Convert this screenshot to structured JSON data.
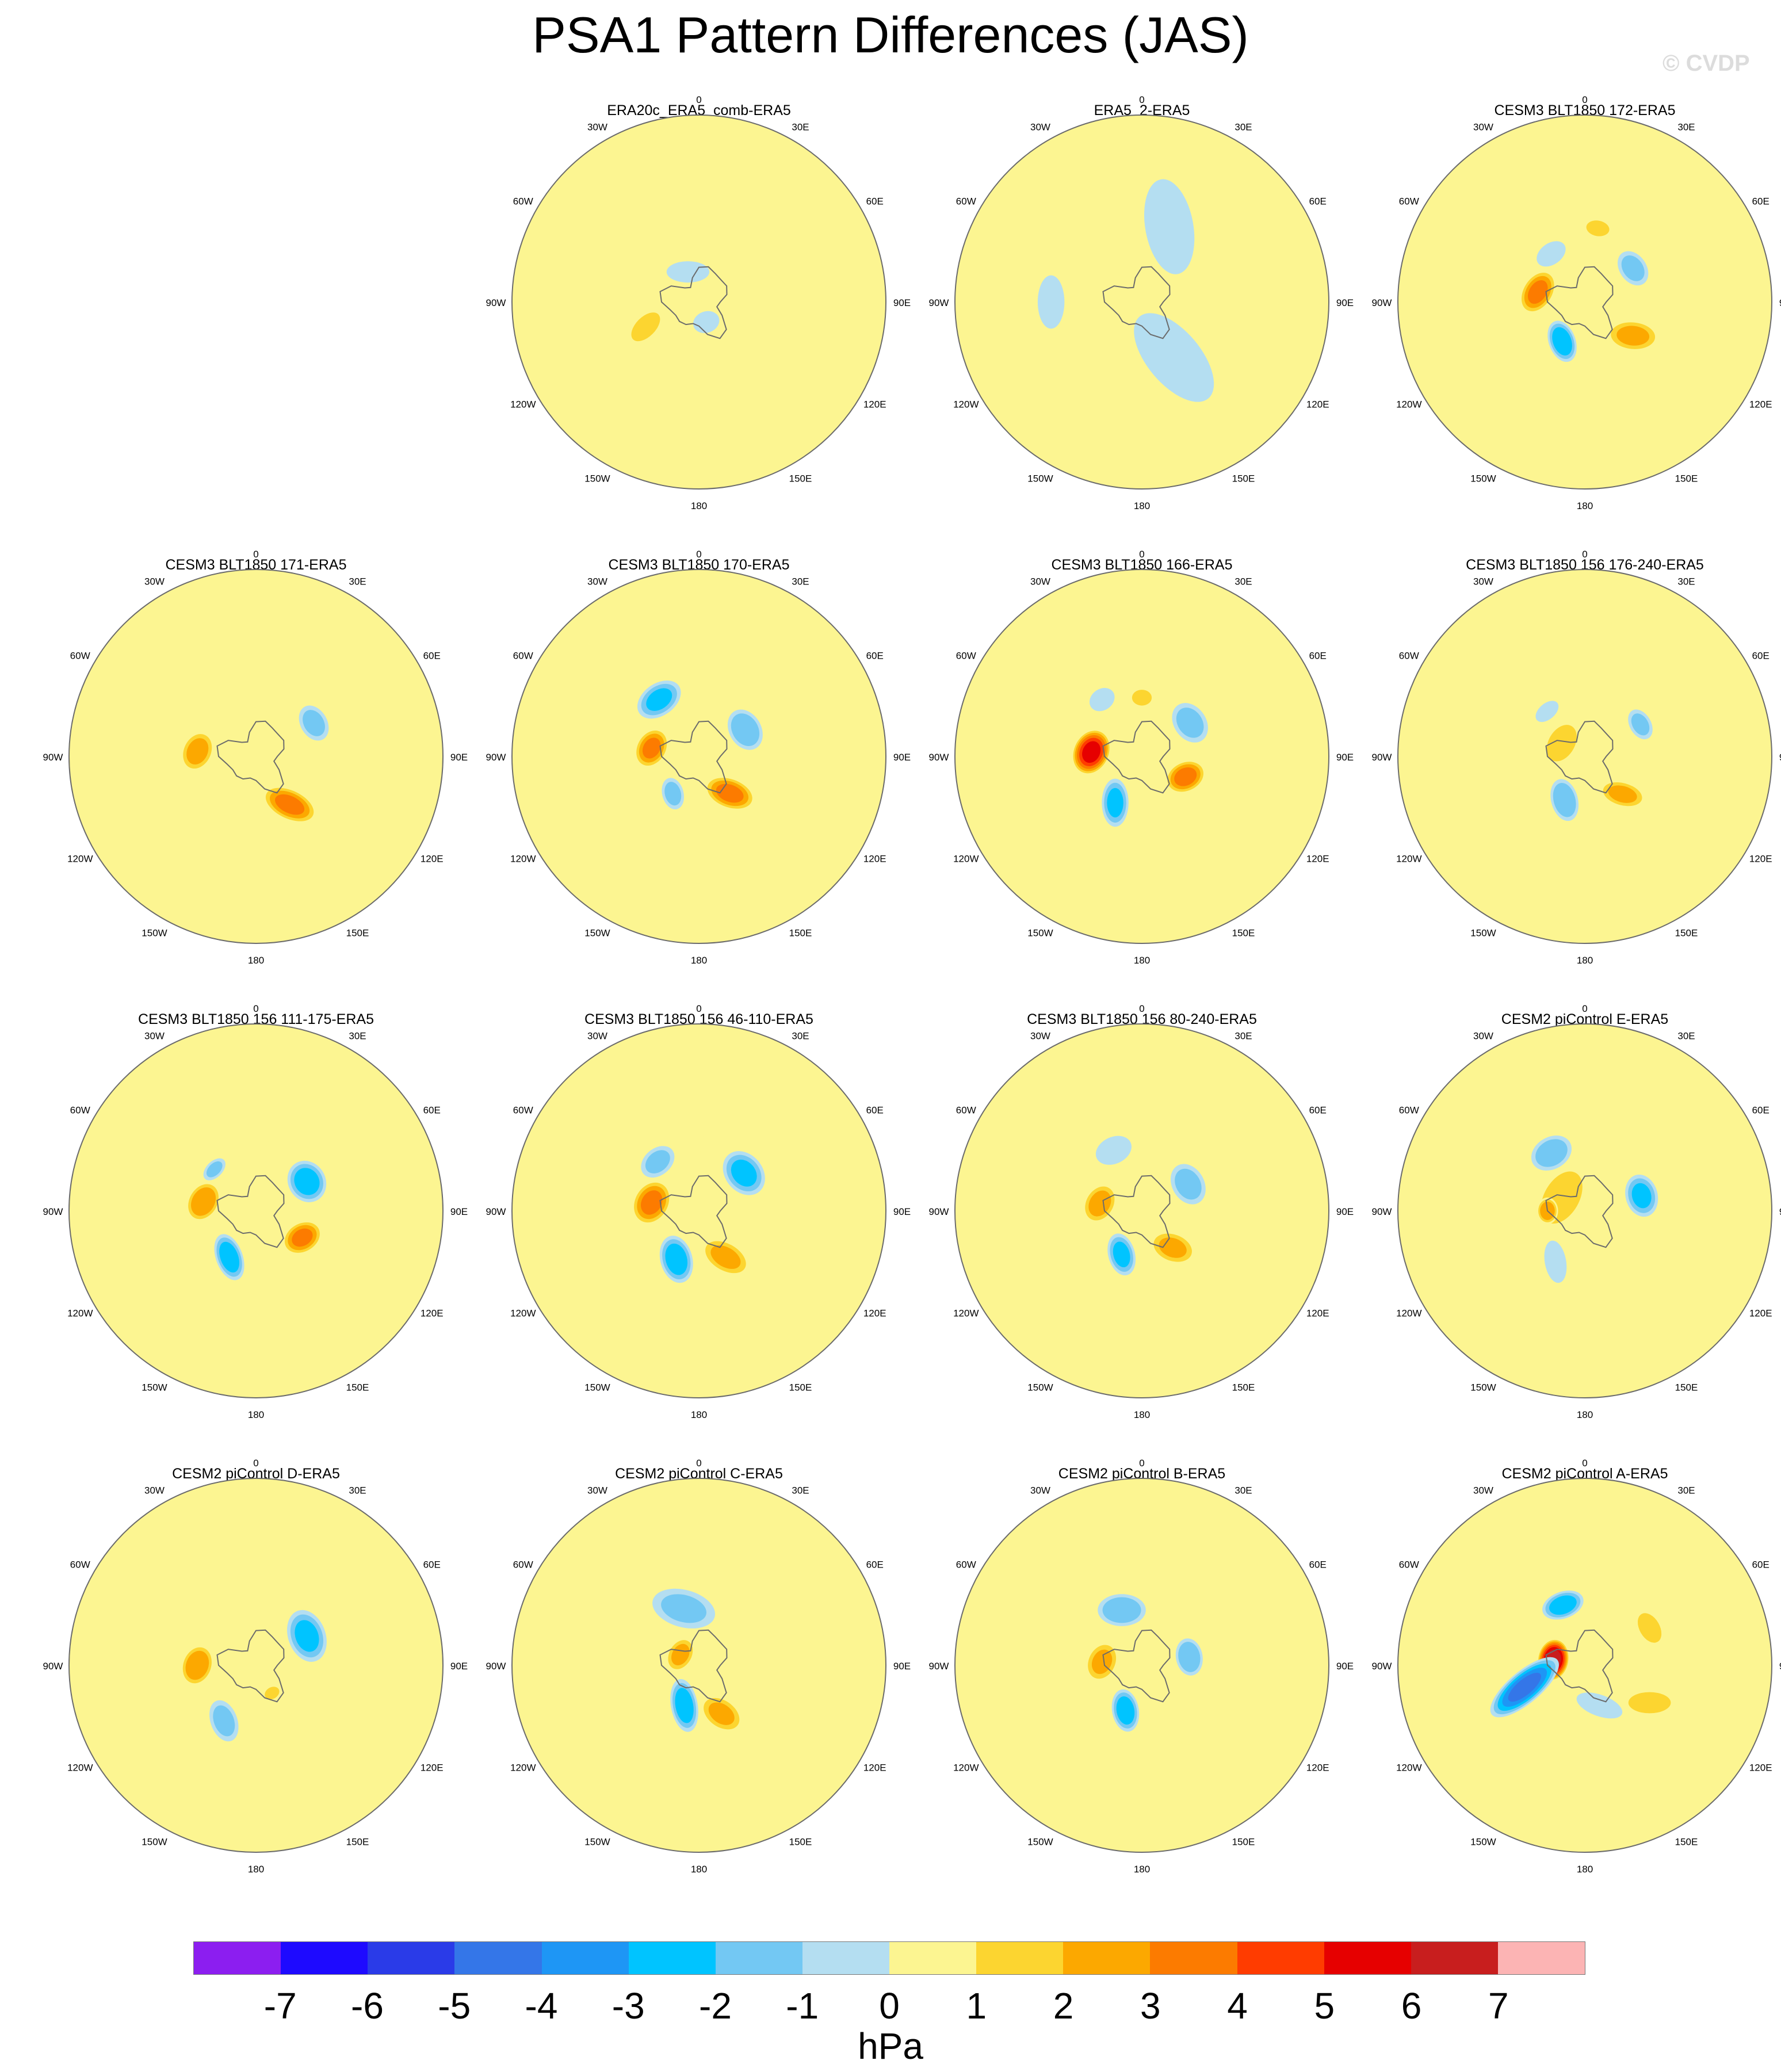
{
  "title": "PSA1 Pattern Differences (JAS)",
  "watermark": "© CVDP",
  "chart_data": {
    "type": "heatmap",
    "projection": "south-polar-stereographic",
    "variable": "sea level pressure pattern difference",
    "units": "hPa",
    "colorbar": {
      "levels": [
        -7,
        -6,
        -5,
        -4,
        -3,
        -2,
        -1,
        0,
        1,
        2,
        3,
        4,
        5,
        6,
        7
      ],
      "tick_labels": [
        "-7",
        "-6",
        "-5",
        "-4",
        "-3",
        "-2",
        "-1",
        "0",
        "1",
        "2",
        "3",
        "4",
        "5",
        "6",
        "7"
      ],
      "colors": [
        "#8c1ef0",
        "#1e0aff",
        "#2a3be8",
        "#3476e8",
        "#1e96f5",
        "#00c4ff",
        "#73c8f3",
        "#b4def1",
        "#fcf591",
        "#fcd530",
        "#fca800",
        "#fc7b00",
        "#ff3c00",
        "#e60000",
        "#c81e1e",
        "#fcb4b4"
      ]
    },
    "longitude_labels": [
      "0",
      "30E",
      "60E",
      "90E",
      "120E",
      "150E",
      "180",
      "150W",
      "120W",
      "90W",
      "60W",
      "30W"
    ],
    "panels": [
      {
        "title": "ERA20c_ERA5_comb-ERA5",
        "anomalies": [
          {
            "lon": -115,
            "colat": 22,
            "a": 9,
            "b": 5,
            "rot": 70,
            "value": 1.6
          },
          {
            "lon": -20,
            "colat": 12,
            "a": 8,
            "b": 4,
            "rot": 20,
            "value": -0.6
          },
          {
            "lon": 160,
            "colat": 8,
            "a": 5,
            "b": 4,
            "rot": 0,
            "value": -0.6
          },
          {
            "lon": 80,
            "colat": 4,
            "a": 4,
            "b": 3,
            "rot": 0,
            "value": 1.3
          }
        ]
      },
      {
        "title": "ERA5_2-ERA5",
        "anomalies": [
          {
            "lon": 20,
            "colat": 30,
            "a": 18,
            "b": 9,
            "rot": 60,
            "value": -0.6
          },
          {
            "lon": 150,
            "colat": 24,
            "a": 20,
            "b": 10,
            "rot": 80,
            "value": -0.6
          },
          {
            "lon": -90,
            "colat": 34,
            "a": 10,
            "b": 5,
            "rot": 0,
            "value": -0.6
          }
        ]
      },
      {
        "title": "CESM3 BLT1850 172-ERA5",
        "anomalies": [
          {
            "lon": -78,
            "colat": 18,
            "a": 9,
            "b": 6,
            "rot": 20,
            "value": 3.6
          },
          {
            "lon": -150,
            "colat": 17,
            "a": 8,
            "b": 5,
            "rot": 40,
            "value": -3.2
          },
          {
            "lon": 125,
            "colat": 22,
            "a": 10,
            "b": 6,
            "rot": 60,
            "value": 2.6
          },
          {
            "lon": 55,
            "colat": 22,
            "a": 7,
            "b": 5,
            "rot": 0,
            "value": -1.7
          },
          {
            "lon": 10,
            "colat": 28,
            "a": 6,
            "b": 4,
            "rot": 0,
            "value": 1.5
          },
          {
            "lon": -35,
            "colat": 22,
            "a": 6,
            "b": 4,
            "rot": 0,
            "value": -1.2
          }
        ]
      },
      {
        "title": "CESM3 BLT1850 171-ERA5",
        "anomalies": [
          {
            "lon": -85,
            "colat": 22,
            "a": 8,
            "b": 6,
            "rot": 20,
            "value": 2.8
          },
          {
            "lon": 145,
            "colat": 22,
            "a": 11,
            "b": 6,
            "rot": 60,
            "value": 3.6
          },
          {
            "lon": 60,
            "colat": 25,
            "a": 7,
            "b": 5,
            "rot": 0,
            "value": -1.7
          },
          {
            "lon": -20,
            "colat": 15,
            "a": 10,
            "b": 4,
            "rot": 10,
            "value": 1.0
          }
        ]
      },
      {
        "title": "CESM3 BLT1850 170-ERA5",
        "anomalies": [
          {
            "lon": -80,
            "colat": 18,
            "a": 8,
            "b": 6,
            "rot": 20,
            "value": 3.5
          },
          {
            "lon": 140,
            "colat": 18,
            "a": 10,
            "b": 6,
            "rot": 60,
            "value": 3.6
          },
          {
            "lon": -35,
            "colat": 26,
            "a": 9,
            "b": 6,
            "rot": 0,
            "value": -2.5
          },
          {
            "lon": 60,
            "colat": 20,
            "a": 8,
            "b": 6,
            "rot": 0,
            "value": -2.3
          },
          {
            "lon": -145,
            "colat": 17,
            "a": 6,
            "b": 4,
            "rot": 40,
            "value": -1.7
          }
        ]
      },
      {
        "title": "CESM3 BLT1850 166-ERA5",
        "anomalies": [
          {
            "lon": -85,
            "colat": 19,
            "a": 9,
            "b": 7,
            "rot": 20,
            "value": 5.8
          },
          {
            "lon": 115,
            "colat": 18,
            "a": 8,
            "b": 6,
            "rot": 40,
            "value": 3.7
          },
          {
            "lon": -150,
            "colat": 20,
            "a": 9,
            "b": 5,
            "rot": 60,
            "value": -2.6
          },
          {
            "lon": 55,
            "colat": 22,
            "a": 8,
            "b": 6,
            "rot": 0,
            "value": -1.8
          },
          {
            "lon": 0,
            "colat": 22,
            "a": 5,
            "b": 4,
            "rot": 0,
            "value": 1.6
          },
          {
            "lon": -35,
            "colat": 26,
            "a": 5,
            "b": 4,
            "rot": 0,
            "value": -1.4
          }
        ]
      },
      {
        "title": "CESM3 BLT1850 156 176-240-ERA5",
        "anomalies": [
          {
            "lon": -60,
            "colat": 10,
            "a": 9,
            "b": 6,
            "rot": 0,
            "value": 2.4
          },
          {
            "lon": 135,
            "colat": 20,
            "a": 9,
            "b": 5,
            "rot": 60,
            "value": 2.6
          },
          {
            "lon": -155,
            "colat": 18,
            "a": 8,
            "b": 5,
            "rot": 50,
            "value": -2.4
          },
          {
            "lon": 60,
            "colat": 24,
            "a": 6,
            "b": 4,
            "rot": 0,
            "value": -1.6
          },
          {
            "lon": -40,
            "colat": 22,
            "a": 5,
            "b": 3,
            "rot": 0,
            "value": -1.2
          }
        ]
      },
      {
        "title": "CESM3 BLT1850 156 111-175-ERA5",
        "anomalies": [
          {
            "lon": -80,
            "colat": 20,
            "a": 8,
            "b": 6,
            "rot": 20,
            "value": 3.4
          },
          {
            "lon": 120,
            "colat": 20,
            "a": 8,
            "b": 6,
            "rot": 30,
            "value": 3.5
          },
          {
            "lon": -150,
            "colat": 20,
            "a": 9,
            "b": 5,
            "rot": 40,
            "value": -3.0
          },
          {
            "lon": 60,
            "colat": 22,
            "a": 8,
            "b": 7,
            "rot": 0,
            "value": -2.9
          },
          {
            "lon": -10,
            "colat": 25,
            "a": 9,
            "b": 4,
            "rot": 0,
            "value": 1.0
          },
          {
            "lon": -45,
            "colat": 22,
            "a": 5,
            "b": 3,
            "rot": 0,
            "value": -1.5
          }
        ]
      },
      {
        "title": "CESM3 BLT1850 156 46-110-ERA5",
        "anomalies": [
          {
            "lon": -80,
            "colat": 18,
            "a": 9,
            "b": 7,
            "rot": 20,
            "value": 3.6
          },
          {
            "lon": 150,
            "colat": 20,
            "a": 10,
            "b": 6,
            "rot": 60,
            "value": 2.6
          },
          {
            "lon": -155,
            "colat": 20,
            "a": 9,
            "b": 6,
            "rot": 50,
            "value": -3.0
          },
          {
            "lon": 50,
            "colat": 22,
            "a": 9,
            "b": 7,
            "rot": 0,
            "value": -2.6
          },
          {
            "lon": -40,
            "colat": 24,
            "a": 7,
            "b": 5,
            "rot": 0,
            "value": -1.6
          },
          {
            "lon": 5,
            "colat": 25,
            "a": 4,
            "b": 3,
            "rot": 0,
            "value": 1.3
          }
        ]
      },
      {
        "title": "CESM3 BLT1850 156 80-240-ERA5",
        "anomalies": [
          {
            "lon": -80,
            "colat": 16,
            "a": 8,
            "b": 6,
            "rot": 20,
            "value": 2.8
          },
          {
            "lon": 140,
            "colat": 18,
            "a": 9,
            "b": 6,
            "rot": 60,
            "value": 2.5
          },
          {
            "lon": -155,
            "colat": 18,
            "a": 8,
            "b": 5,
            "rot": 50,
            "value": -2.6
          },
          {
            "lon": 60,
            "colat": 20,
            "a": 8,
            "b": 6,
            "rot": 0,
            "value": -1.8
          },
          {
            "lon": -25,
            "colat": 25,
            "a": 7,
            "b": 5,
            "rot": 0,
            "value": -1.2
          }
        ]
      },
      {
        "title": "CESM2 piControl E-ERA5",
        "anomalies": [
          {
            "lon": -60,
            "colat": 10,
            "a": 13,
            "b": 8,
            "rot": 0,
            "value": 2.4
          },
          {
            "lon": -90,
            "colat": 14,
            "a": 5,
            "b": 4,
            "rot": 0,
            "value": 3.2
          },
          {
            "lon": 75,
            "colat": 22,
            "a": 8,
            "b": 6,
            "rot": 0,
            "value": -2.5
          },
          {
            "lon": -30,
            "colat": 25,
            "a": 8,
            "b": 6,
            "rot": 0,
            "value": -2.1
          },
          {
            "lon": -150,
            "colat": 22,
            "a": 8,
            "b": 4,
            "rot": 50,
            "value": -1.3
          },
          {
            "lon": 160,
            "colat": 15,
            "a": 6,
            "b": 4,
            "rot": 0,
            "value": 1.2
          }
        ]
      },
      {
        "title": "CESM2 piControl D-ERA5",
        "anomalies": [
          {
            "lon": -90,
            "colat": 22,
            "a": 8,
            "b": 6,
            "rot": 20,
            "value": 3.3
          },
          {
            "lon": 60,
            "colat": 22,
            "a": 10,
            "b": 7,
            "rot": 10,
            "value": -2.6
          },
          {
            "lon": -150,
            "colat": 24,
            "a": 8,
            "b": 5,
            "rot": 40,
            "value": -1.7
          },
          {
            "lon": 150,
            "colat": 12,
            "a": 4,
            "b": 3,
            "rot": 0,
            "value": 1.5
          }
        ]
      },
      {
        "title": "CESM2 piControl C-ERA5",
        "anomalies": [
          {
            "lon": -60,
            "colat": 8,
            "a": 7,
            "b": 5,
            "rot": 0,
            "value": 2.6
          },
          {
            "lon": 155,
            "colat": 20,
            "a": 9,
            "b": 6,
            "rot": 60,
            "value": 2.5
          },
          {
            "lon": -160,
            "colat": 16,
            "a": 10,
            "b": 5,
            "rot": 60,
            "value": -3.0
          },
          {
            "lon": -15,
            "colat": 22,
            "a": 12,
            "b": 7,
            "rot": 30,
            "value": -1.5
          },
          {
            "lon": 80,
            "colat": 30,
            "a": 6,
            "b": 4,
            "rot": 0,
            "value": 1.0
          }
        ]
      },
      {
        "title": "CESM2 piControl B-ERA5",
        "anomalies": [
          {
            "lon": -85,
            "colat": 15,
            "a": 8,
            "b": 6,
            "rot": 20,
            "value": 2.5
          },
          {
            "lon": -160,
            "colat": 18,
            "a": 8,
            "b": 5,
            "rot": 60,
            "value": -3.0
          },
          {
            "lon": 80,
            "colat": 18,
            "a": 7,
            "b": 5,
            "rot": 0,
            "value": -2.4
          },
          {
            "lon": -20,
            "colat": 22,
            "a": 9,
            "b": 6,
            "rot": 20,
            "value": -2.2
          },
          {
            "lon": 150,
            "colat": 28,
            "a": 8,
            "b": 4,
            "rot": 60,
            "value": 1.4
          }
        ]
      },
      {
        "title": "CESM2 piControl A-ERA5",
        "anomalies": [
          {
            "lon": -80,
            "colat": 12,
            "a": 8,
            "b": 6,
            "rot": 0,
            "value": 7.2
          },
          {
            "lon": -110,
            "colat": 24,
            "a": 16,
            "b": 6,
            "rot": 70,
            "value": -4.6
          },
          {
            "lon": -20,
            "colat": 24,
            "a": 8,
            "b": 5,
            "rot": 0,
            "value": -3.0
          },
          {
            "lon": 60,
            "colat": 28,
            "a": 8,
            "b": 5,
            "rot": 0,
            "value": 1.7
          },
          {
            "lon": 120,
            "colat": 28,
            "a": 10,
            "b": 5,
            "rot": 60,
            "value": 2.1
          },
          {
            "lon": 160,
            "colat": 16,
            "a": 9,
            "b": 4,
            "rot": 40,
            "value": -1.3
          }
        ]
      }
    ]
  }
}
